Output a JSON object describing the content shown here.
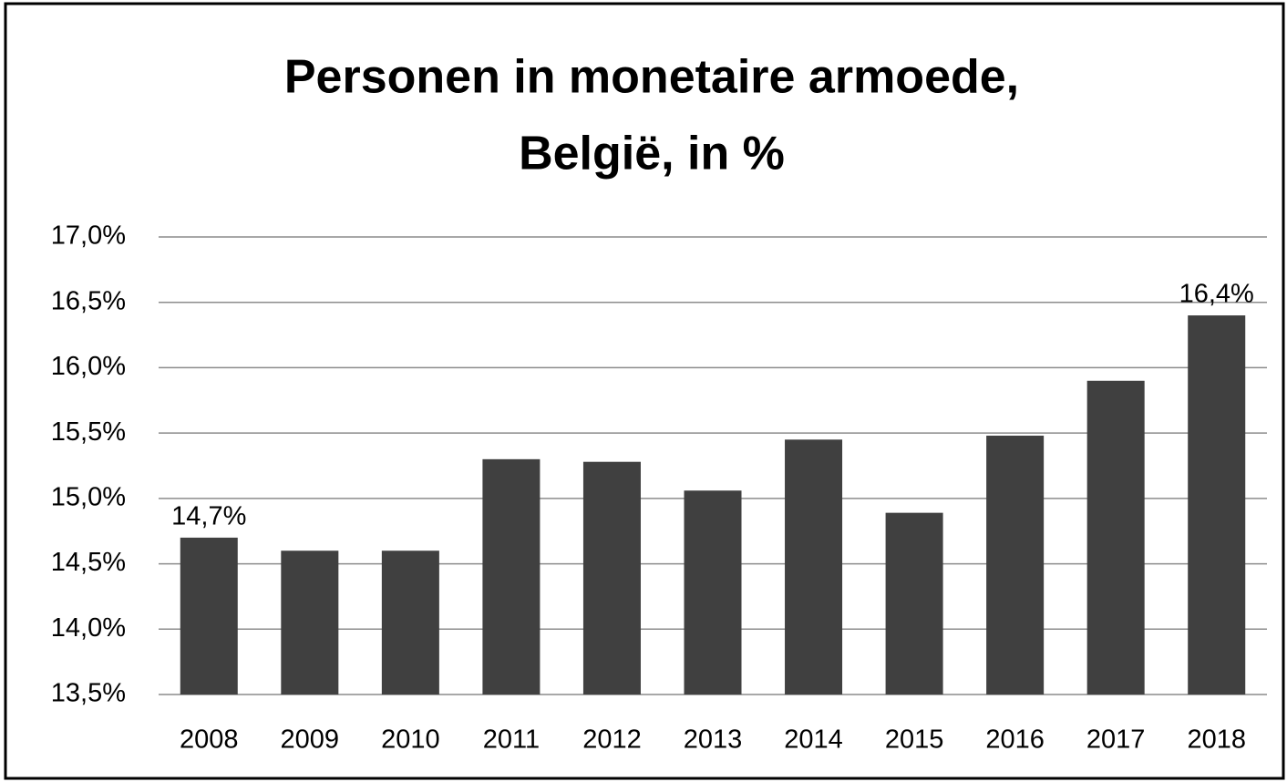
{
  "chart_data": {
    "type": "bar",
    "title": [
      "Personen in monetaire armoede,",
      "België, in %"
    ],
    "categories": [
      "2008",
      "2009",
      "2010",
      "2011",
      "2012",
      "2013",
      "2014",
      "2015",
      "2016",
      "2017",
      "2018"
    ],
    "values": [
      14.7,
      14.6,
      14.6,
      15.3,
      15.28,
      15.06,
      15.45,
      14.89,
      15.48,
      15.9,
      16.4
    ],
    "value_labels": [
      "14,7%",
      null,
      null,
      null,
      null,
      null,
      null,
      null,
      null,
      null,
      "16,4%"
    ],
    "color": "#404040",
    "ylim": [
      13.5,
      17.0
    ],
    "yticks": [
      {
        "value": 13.5,
        "label": "13,5%"
      },
      {
        "value": 14.0,
        "label": "14,0%"
      },
      {
        "value": 14.5,
        "label": "14,5%"
      },
      {
        "value": 15.0,
        "label": "15,0%"
      },
      {
        "value": 15.5,
        "label": "15,5%"
      },
      {
        "value": 16.0,
        "label": "16,0%"
      },
      {
        "value": 16.5,
        "label": "16,5%"
      },
      {
        "value": 17.0,
        "label": "17,0%"
      }
    ],
    "grid": true
  }
}
